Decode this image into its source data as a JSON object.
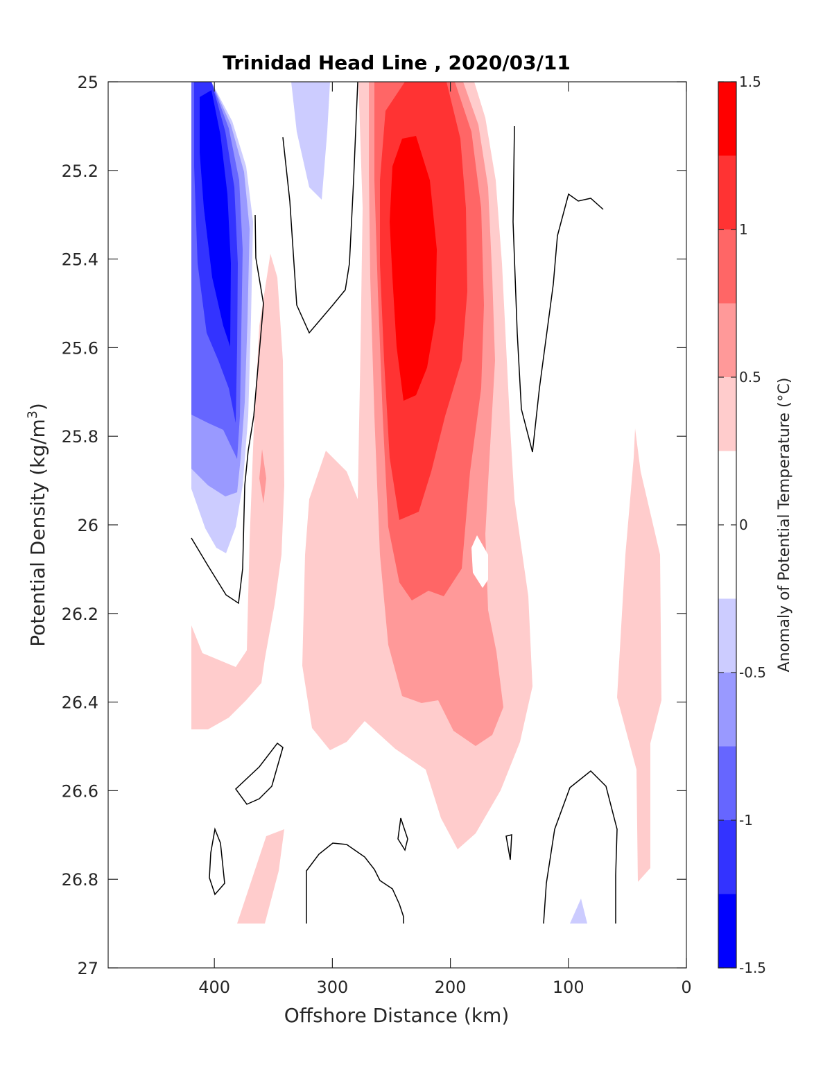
{
  "chart_data": {
    "type": "heatmap",
    "subtype": "filled-contour",
    "title": "Trinidad Head Line , 2020/03/11",
    "xlabel": "Offshore Distance (km)",
    "ylabel": "Potential Density (kg/m",
    "ylabel_superscript": "3",
    "ylabel_close": ")",
    "xlim": [
      490,
      0
    ],
    "ylim": [
      25,
      27
    ],
    "x_reversed": true,
    "y_reversed": true,
    "x_ticks": [
      400,
      300,
      200,
      100,
      0
    ],
    "y_ticks": [
      "25",
      "25.2",
      "25.4",
      "25.6",
      "25.8",
      "26",
      "26.2",
      "26.4",
      "26.6",
      "26.8",
      "27"
    ],
    "colorbar": {
      "label": "Anomaly of Potential Temperature (°C)",
      "range": [
        -1.5,
        1.5
      ],
      "ticks": [
        "1.5",
        "1",
        "0.5",
        "0",
        "-0.5",
        "-1",
        "-1.5"
      ],
      "levels": [
        -1.5,
        -1.25,
        -1.0,
        -0.75,
        -0.5,
        -0.25,
        0.25,
        0.5,
        0.75,
        1.0,
        1.25,
        1.5
      ],
      "colors": [
        "#0000ff",
        "#3333ff",
        "#6666ff",
        "#9999ff",
        "#ccccff",
        "#ffffff",
        "#ffcccc",
        "#ff9999",
        "#ff6666",
        "#ff3333",
        "#ff0000"
      ]
    },
    "contour_line_level": 0,
    "features": [
      {
        "name": "cold anomaly core",
        "x_range_km": [
          420,
          370
        ],
        "density_range": [
          25.0,
          26.05
        ],
        "min_value": -1.5
      },
      {
        "name": "warm anomaly core",
        "x_range_km": [
          270,
          160
        ],
        "density_range": [
          25.0,
          26.5
        ],
        "max_value": 1.5
      },
      {
        "name": "nearshore warm band",
        "x_range_km": [
          50,
          20
        ],
        "density_range": [
          25.78,
          26.8
        ],
        "max_value": 0.5
      }
    ]
  }
}
